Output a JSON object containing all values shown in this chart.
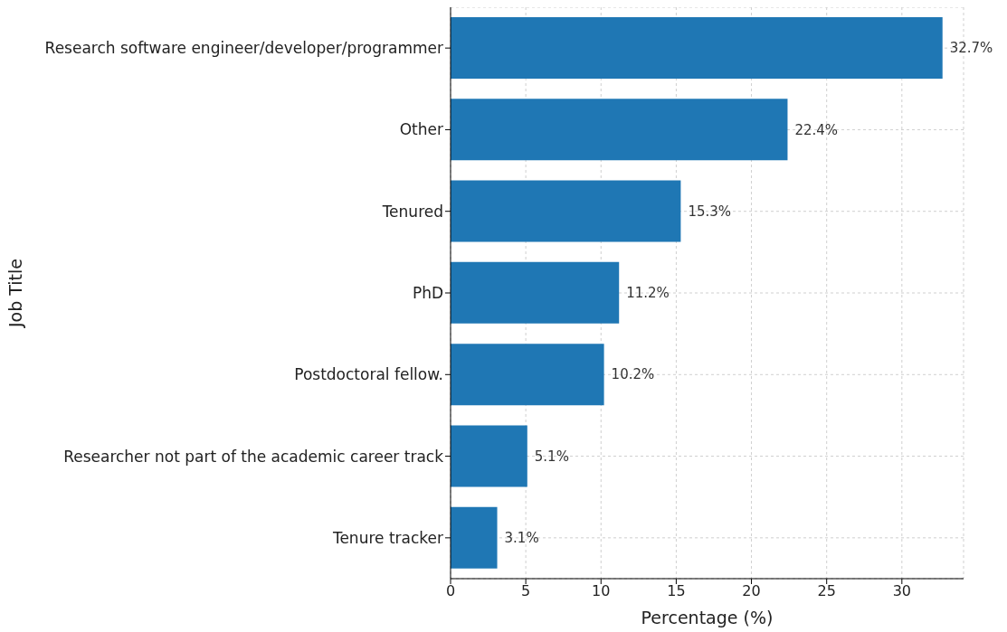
{
  "chart_data": {
    "type": "bar",
    "orientation": "horizontal",
    "xlabel": "Percentage (%)",
    "ylabel": "Job Title",
    "categories": [
      "Research software engineer/developer/programmer",
      "Other",
      "Tenured",
      "PhD",
      "Postdoctoral fellow.",
      "Researcher not part of the academic career track",
      "Tenure tracker"
    ],
    "values": [
      32.7,
      22.4,
      15.3,
      11.2,
      10.2,
      5.1,
      3.1
    ],
    "value_labels": [
      "32.7%",
      "22.4%",
      "15.3%",
      "11.2%",
      "10.2%",
      "5.1%",
      "3.1%"
    ],
    "color": "#1f77b4",
    "xlim": [
      0,
      34.1
    ],
    "xticks": [
      0,
      5,
      10,
      15,
      20,
      25,
      30
    ],
    "grid": true
  }
}
